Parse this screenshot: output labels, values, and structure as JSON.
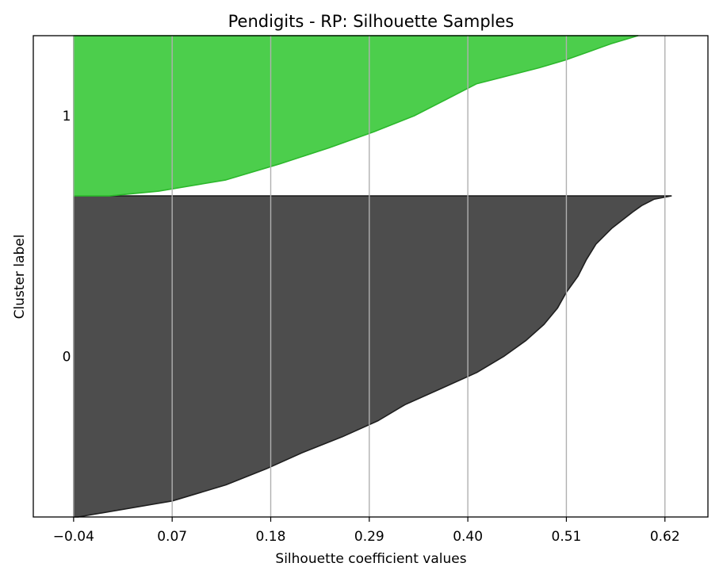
{
  "chart_data": {
    "type": "area",
    "title": "Pendigits - RP: Silhouette Samples",
    "xlabel": "Silhouette coefficient values",
    "ylabel": "Cluster label",
    "xlim": [
      -0.085,
      0.668
    ],
    "xticks": [
      -0.04,
      0.07,
      0.18,
      0.29,
      0.4,
      0.51,
      0.62
    ],
    "xtick_labels": [
      "−0.04",
      "0.07",
      "0.18",
      "0.29",
      "0.40",
      "0.51",
      "0.62"
    ],
    "grid": "x",
    "y_axis": "cluster bands ordered bottom to top; within each band silhouette values are sorted ascending from bottom to top",
    "series": [
      {
        "name": "0",
        "color": "#4d4d4d",
        "edge_color": "#1f1f1f",
        "sample_fraction": [
          0,
          0.05,
          0.1,
          0.15,
          0.2,
          0.25,
          0.3,
          0.35,
          0.4,
          0.45,
          0.5,
          0.55,
          0.6,
          0.65,
          0.7,
          0.75,
          0.8,
          0.85,
          0.9,
          0.95,
          0.97,
          0.99,
          1.0
        ],
        "silhouette": [
          -0.035,
          0.07,
          0.13,
          0.175,
          0.215,
          0.26,
          0.3,
          0.33,
          0.37,
          0.41,
          0.44,
          0.465,
          0.485,
          0.5,
          0.51,
          0.523,
          0.532,
          0.543,
          0.561,
          0.584,
          0.594,
          0.608,
          0.627
        ]
      },
      {
        "name": "1",
        "color": "#4cce4c",
        "edge_color": "#2cb82c",
        "sample_fraction": [
          0,
          0.03,
          0.1,
          0.2,
          0.3,
          0.4,
          0.5,
          0.6,
          0.7,
          0.75,
          0.8,
          0.85,
          0.9,
          0.95,
          1.0
        ],
        "silhouette": [
          0.0,
          0.055,
          0.13,
          0.19,
          0.245,
          0.295,
          0.34,
          0.375,
          0.41,
          0.445,
          0.48,
          0.51,
          0.535,
          0.56,
          0.59
        ]
      }
    ],
    "cluster_bands": [
      {
        "label": "0",
        "sample_share": 0.667
      },
      {
        "label": "1",
        "sample_share": 0.333
      }
    ]
  }
}
